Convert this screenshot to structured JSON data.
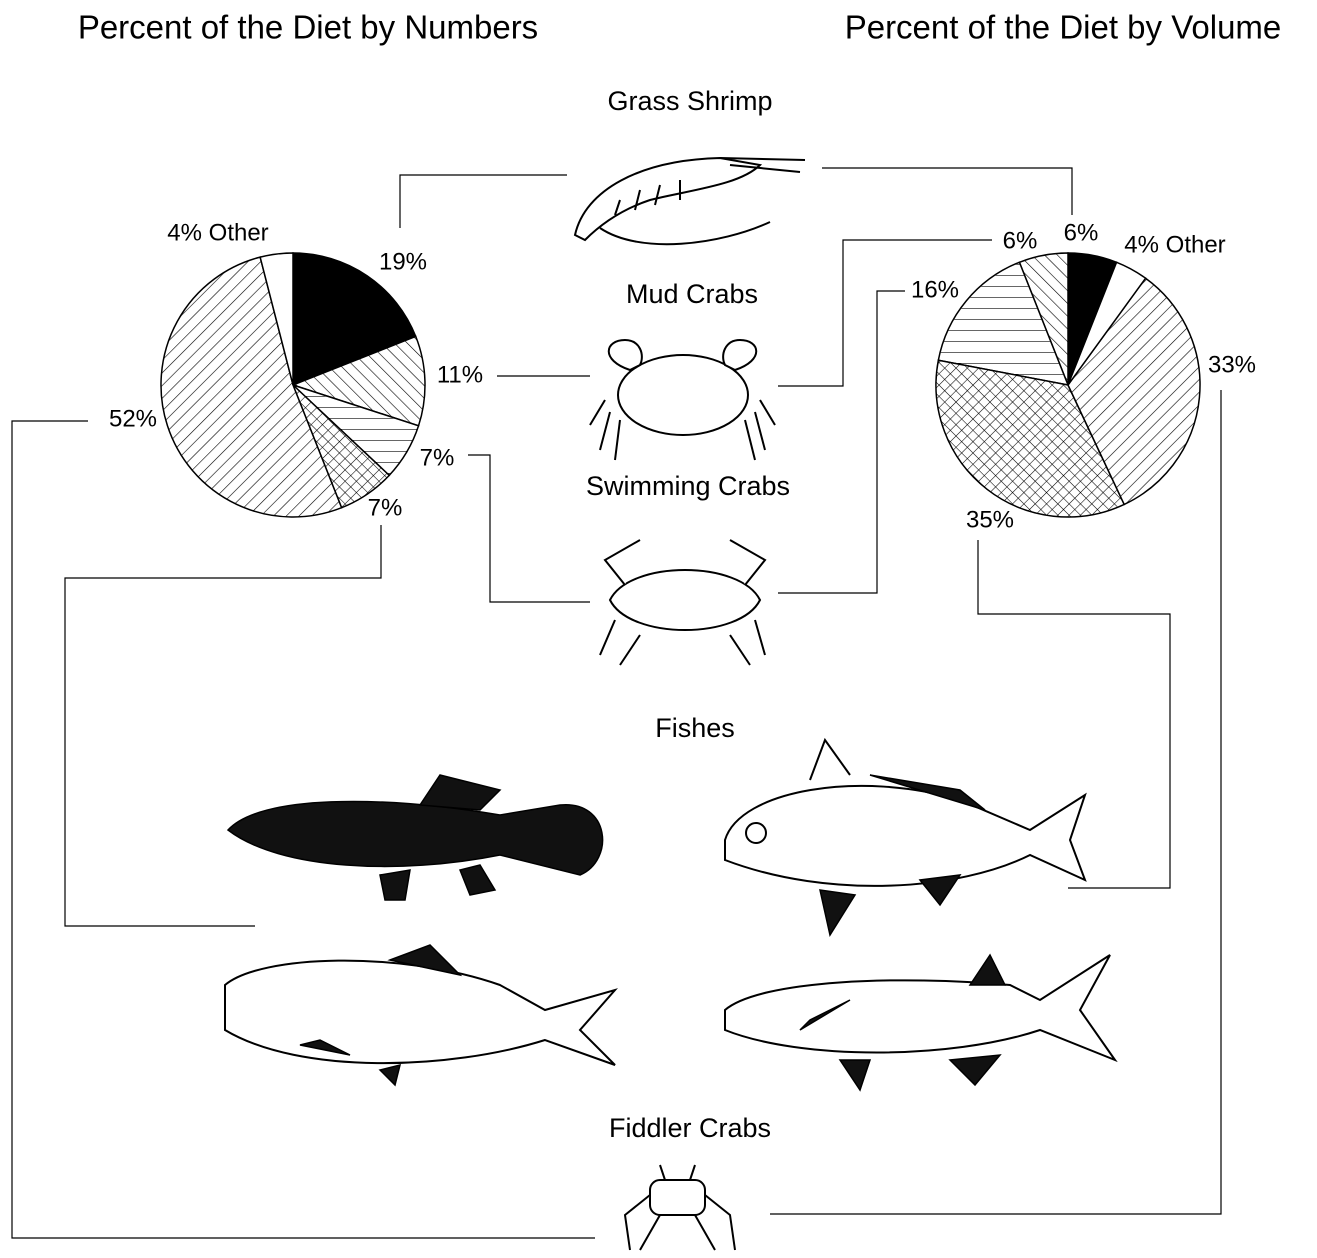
{
  "chart_data": {
    "type": "pie",
    "categories": [
      "Grass Shrimp",
      "Mud Crabs",
      "Swimming Crabs",
      "Fishes",
      "Fiddler Crabs",
      null
    ],
    "series": [
      {
        "name": "Percent of the Diet by Numbers",
        "values": [
          19,
          11,
          7,
          7,
          52,
          4
        ],
        "value_labels": [
          "19%",
          "11%",
          "7%",
          "7%",
          "52%",
          "4% Other"
        ]
      },
      {
        "name": "Percent of the Diet by Volume",
        "values": [
          6,
          6,
          16,
          35,
          33,
          4
        ],
        "value_labels": [
          "6%",
          "6%",
          "16%",
          "35%",
          "33%",
          "4% Other"
        ]
      }
    ]
  }
}
